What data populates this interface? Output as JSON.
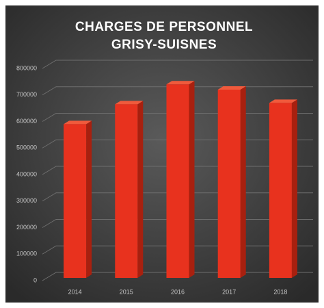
{
  "chart_data": {
    "type": "bar3d",
    "title": "CHARGES DE PERSONNEL",
    "subtitle": "GRISY-SUISNES",
    "categories": [
      "2014",
      "2015",
      "2016",
      "2017",
      "2018"
    ],
    "values": [
      590000,
      665000,
      740000,
      720000,
      670000
    ],
    "color": "#e8321e",
    "ylim": [
      0,
      800000
    ],
    "yticks": [
      0,
      100000,
      200000,
      300000,
      400000,
      500000,
      600000,
      700000,
      800000
    ],
    "grid": true
  }
}
